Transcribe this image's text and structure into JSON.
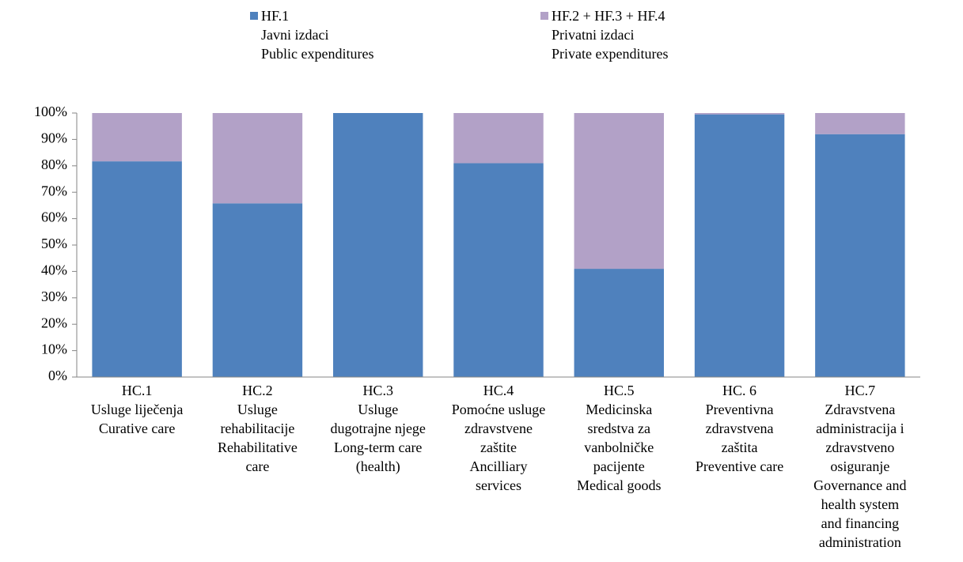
{
  "chart_data": {
    "type": "stacked_bar",
    "categories": [
      "HC.1\nUsluge liječenja\nCurative care",
      "HC.2\nUsluge\nrehabilitacije\nRehabilitative\ncare",
      "HC.3\nUsluge\ndugotrajne njege\nLong-term care\n(health)",
      "HC.4\nPomoćne usluge\nzdravstvene\nzaštite\nAncilliary\nservices",
      "HC.5\nMedicinska\nsredstva za\nvanbolničke\npacijente\nMedical goods",
      "HC. 6\nPreventivna\nzdravstvena\nzaštita\nPreventive care",
      "HC.7\nZdravstvena\nadministracija i\nzdravstveno\nosiguranje\nGovernance and\nhealth system\nand financing\nadministration"
    ],
    "series": [
      {
        "name": "HF.1\nJavni izdaci\nPublic expenditures",
        "color": "#4f81bd",
        "values": [
          81.7,
          65.8,
          100,
          81,
          41,
          99.5,
          92
        ]
      },
      {
        "name": "HF.2 + HF.3 + HF.4\nPrivatni izdaci\nPrivate expenditures",
        "color": "#b2a1c7",
        "values": [
          18.3,
          34.2,
          0,
          19,
          59,
          0.5,
          8
        ]
      }
    ],
    "ylim": [
      0,
      100
    ],
    "yticks": [
      {
        "value": 0,
        "label": "0%"
      },
      {
        "value": 10,
        "label": "10%"
      },
      {
        "value": 20,
        "label": "20%"
      },
      {
        "value": 30,
        "label": "30%"
      },
      {
        "value": 40,
        "label": "40%"
      },
      {
        "value": 50,
        "label": "50%"
      },
      {
        "value": 60,
        "label": "60%"
      },
      {
        "value": 70,
        "label": "70%"
      },
      {
        "value": 80,
        "label": "80%"
      },
      {
        "value": 90,
        "label": "90%"
      },
      {
        "value": 100,
        "label": "100%"
      }
    ],
    "grid": false
  }
}
